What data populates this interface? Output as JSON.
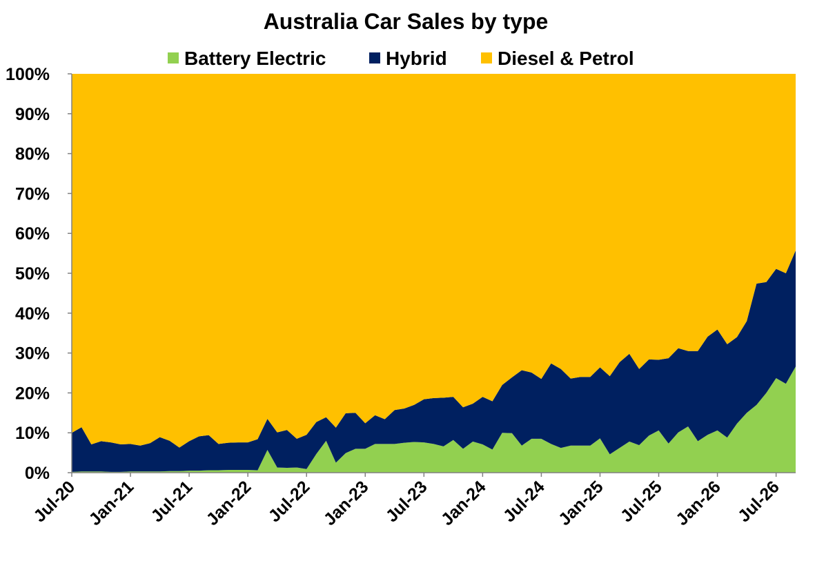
{
  "chart_data": {
    "type": "area",
    "stacked": true,
    "title": "Australia Car Sales by type",
    "xlabel": "",
    "ylabel": "",
    "ylim": [
      0,
      100
    ],
    "y_ticks": [
      "0%",
      "10%",
      "20%",
      "30%",
      "40%",
      "50%",
      "60%",
      "70%",
      "80%",
      "90%",
      "100%"
    ],
    "x_ticks": [
      "Jul-20",
      "Jan-21",
      "Jul-21",
      "Jan-22",
      "Jul-22",
      "Jan-23",
      "Jul-23",
      "Jan-24",
      "Jul-24",
      "Jan-25",
      "Jul-25",
      "Jan-26",
      "Jul-26"
    ],
    "x_start": "Jul-20",
    "legend_position": "top",
    "grid": false,
    "series": [
      {
        "name": "Battery Electric",
        "color": "#92D050",
        "values": [
          0.2,
          0.3,
          0.3,
          0.3,
          0.2,
          0.2,
          0.3,
          0.3,
          0.3,
          0.3,
          0.4,
          0.4,
          0.5,
          0.5,
          0.6,
          0.6,
          0.7,
          0.7,
          0.7,
          0.6,
          5.7,
          1.3,
          1.2,
          1.3,
          0.9,
          4.7,
          8.0,
          2.5,
          4.9,
          6.0,
          6.0,
          7.2,
          7.2,
          7.2,
          7.5,
          7.7,
          7.6,
          7.2,
          6.6,
          8.2,
          6.0,
          7.8,
          7.1,
          5.8,
          10.0,
          9.9,
          6.8,
          8.5,
          8.5,
          7.2,
          6.2,
          6.8,
          6.8,
          6.8,
          8.6,
          4.6,
          6.2,
          7.8,
          6.9,
          9.3,
          10.6,
          7.3,
          10.1,
          11.6,
          7.9,
          9.5,
          10.6,
          8.8,
          12.3,
          15.0,
          17.0,
          20.0,
          23.7,
          22.3,
          26.6
        ]
      },
      {
        "name": "Hybrid",
        "color": "#002060",
        "values": [
          9.8,
          11.1,
          6.8,
          7.6,
          7.4,
          6.9,
          6.9,
          6.5,
          7.1,
          8.6,
          7.6,
          5.9,
          7.4,
          8.6,
          8.8,
          6.6,
          6.8,
          6.9,
          6.9,
          7.8,
          7.8,
          8.8,
          9.5,
          7.2,
          8.6,
          8.0,
          5.9,
          8.8,
          10.0,
          9.0,
          6.4,
          7.2,
          6.2,
          8.5,
          8.6,
          9.3,
          10.8,
          11.5,
          12.2,
          10.8,
          10.4,
          9.5,
          11.9,
          12.1,
          12.0,
          14.0,
          18.9,
          16.6,
          15.0,
          20.2,
          19.8,
          16.8,
          17.2,
          17.2,
          17.8,
          19.6,
          21.5,
          22.0,
          19.1,
          19.1,
          17.7,
          21.4,
          21.1,
          18.9,
          22.6,
          24.6,
          25.3,
          23.4,
          21.7,
          23.0,
          30.4,
          27.8,
          27.4,
          27.7,
          29.1
        ]
      },
      {
        "name": "Diesel & Petrol",
        "color": "#FFC000",
        "values": [
          90.0,
          88.6,
          92.9,
          92.1,
          92.4,
          92.9,
          92.8,
          93.2,
          92.6,
          91.1,
          92.0,
          93.7,
          92.1,
          90.9,
          90.6,
          92.8,
          92.5,
          92.4,
          92.4,
          91.6,
          86.5,
          89.9,
          89.3,
          91.5,
          90.5,
          87.3,
          86.1,
          88.7,
          85.1,
          85.0,
          87.6,
          85.6,
          86.6,
          84.3,
          83.9,
          83.0,
          81.6,
          81.3,
          81.2,
          81.0,
          83.6,
          82.7,
          81.0,
          82.1,
          78.0,
          76.1,
          74.3,
          74.9,
          76.5,
          72.6,
          74.0,
          76.4,
          76.0,
          76.0,
          73.6,
          75.8,
          72.3,
          70.2,
          74.0,
          71.6,
          71.7,
          71.3,
          68.8,
          69.5,
          69.5,
          65.9,
          64.1,
          67.8,
          66.0,
          62.0,
          52.6,
          52.2,
          48.9,
          50.0,
          44.3
        ]
      }
    ]
  }
}
